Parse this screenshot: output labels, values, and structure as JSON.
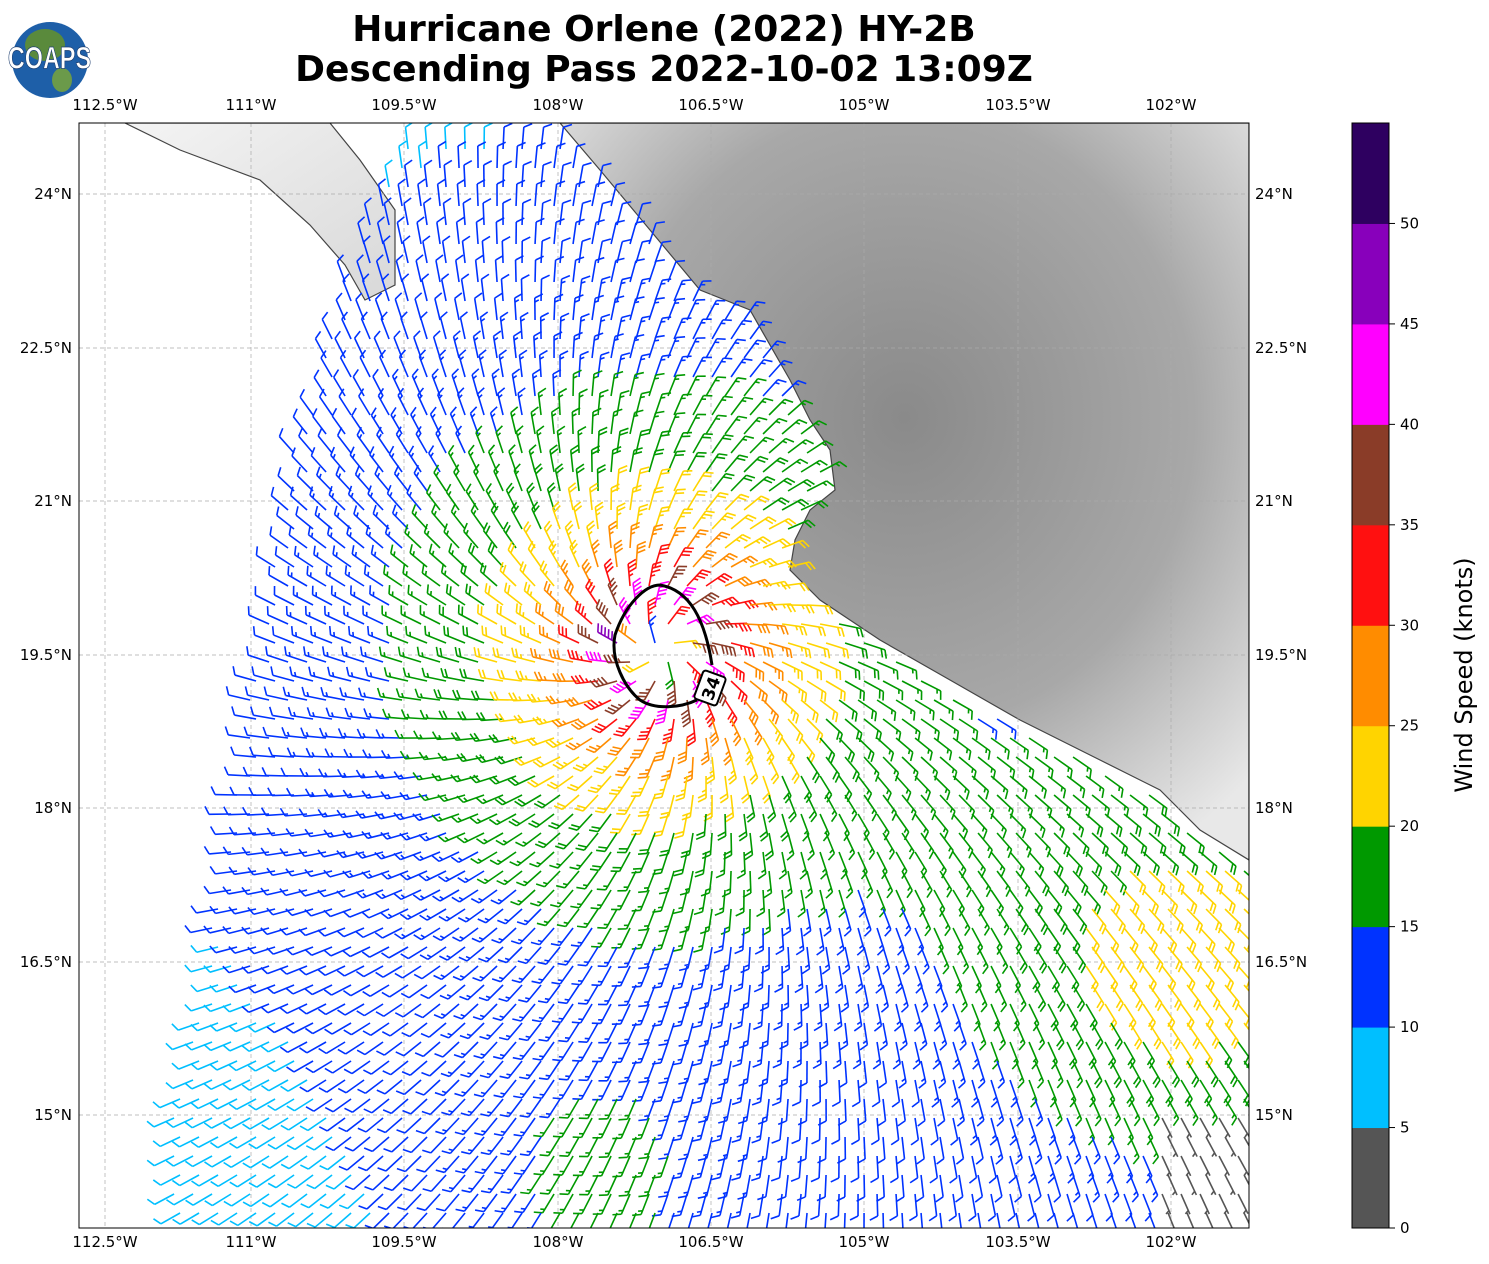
{
  "title": {
    "line1": "Hurricane Orlene (2022) HY-2B",
    "line2": "Descending Pass 2022-10-02 13:09Z"
  },
  "logo": {
    "text": "COAPS"
  },
  "map": {
    "lon_ticks": [
      "112.5°W",
      "111°W",
      "109.5°W",
      "108°W",
      "106.5°W",
      "105°W",
      "103.5°W",
      "102°W"
    ],
    "lat_ticks": [
      "24°N",
      "22.5°N",
      "21°N",
      "19.5°N",
      "18°N",
      "16.5°N",
      "15°N"
    ],
    "contour_label": "34",
    "gridlines": true
  },
  "colorbar": {
    "label": "Wind Speed (knots)",
    "ticks": [
      "0",
      "5",
      "10",
      "15",
      "20",
      "25",
      "30",
      "35",
      "40",
      "45",
      "50"
    ],
    "colors": [
      "#555555",
      "#00bfff",
      "#0033ff",
      "#009900",
      "#ffd400",
      "#ff8c00",
      "#ff1010",
      "#8a3c28",
      "#ff00ff",
      "#8800bb",
      "#2e0060"
    ]
  }
}
